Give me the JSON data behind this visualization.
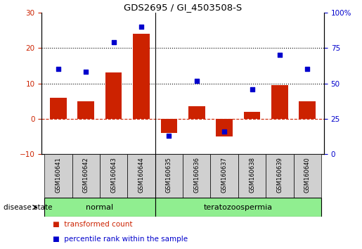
{
  "title": "GDS2695 / GI_4503508-S",
  "samples": [
    "GSM160641",
    "GSM160642",
    "GSM160643",
    "GSM160644",
    "GSM160635",
    "GSM160636",
    "GSM160637",
    "GSM160638",
    "GSM160639",
    "GSM160640"
  ],
  "transformed_count": [
    6,
    5,
    13,
    24,
    -4,
    3.5,
    -5,
    2,
    9.5,
    5
  ],
  "percentile_rank": [
    60,
    58,
    79,
    90,
    13,
    52,
    16,
    46,
    70,
    60
  ],
  "disease_state_label": "disease state",
  "ylim_left": [
    -10,
    30
  ],
  "ylim_right": [
    0,
    100
  ],
  "yticks_left": [
    -10,
    0,
    10,
    20,
    30
  ],
  "ytick_labels_right": [
    "0",
    "25",
    "50",
    "75",
    "100%"
  ],
  "yticks_right": [
    0,
    25,
    50,
    75,
    100
  ],
  "bar_color": "#cc2200",
  "scatter_color": "#0000cc",
  "zero_line_color": "#cc2200",
  "bg_plot": "#ffffff",
  "bg_sample": "#d0d0d0",
  "bg_group": "#90ee90",
  "group_divider": 4,
  "legend_bar_label": "transformed count",
  "legend_scatter_label": "percentile rank within the sample"
}
